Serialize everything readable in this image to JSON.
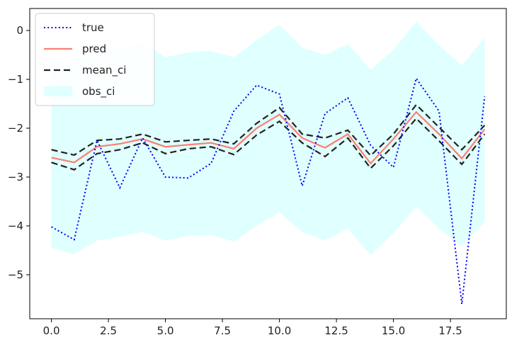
{
  "chart_data": {
    "type": "line",
    "title": "",
    "xlabel": "",
    "ylabel": "",
    "xlim": [
      -0.95,
      19.95
    ],
    "ylim": [
      -5.9,
      0.45
    ],
    "xticks": [
      0,
      2.5,
      5,
      7.5,
      10,
      12.5,
      15,
      17.5
    ],
    "xtick_labels": [
      "0.0",
      "2.5",
      "5.0",
      "7.5",
      "10.0",
      "12.5",
      "15.0",
      "17.5"
    ],
    "yticks": [
      0,
      -1,
      -2,
      -3,
      -4,
      -5
    ],
    "ytick_labels": [
      "0",
      "−1",
      "−2",
      "−3",
      "−4",
      "−5"
    ],
    "grid": false,
    "legend_position": "top-left",
    "x": [
      0,
      1,
      2,
      3,
      4,
      5,
      6,
      7,
      8,
      9,
      10,
      11,
      12,
      13,
      14,
      15,
      16,
      17,
      18,
      19
    ],
    "series": [
      {
        "name": "true",
        "style": "dotted",
        "color": "#0000ff",
        "values": [
          -4.02,
          -4.28,
          -2.25,
          -3.22,
          -2.2,
          -3.0,
          -3.02,
          -2.72,
          -1.65,
          -1.12,
          -1.3,
          -3.18,
          -1.7,
          -1.38,
          -2.35,
          -2.8,
          -0.98,
          -1.65,
          -5.6,
          -1.35
        ]
      },
      {
        "name": "pred",
        "style": "solid",
        "color": "#fa8072",
        "values": [
          -2.6,
          -2.7,
          -2.38,
          -2.32,
          -2.22,
          -2.38,
          -2.34,
          -2.3,
          -2.42,
          -2.0,
          -1.72,
          -2.2,
          -2.4,
          -2.12,
          -2.72,
          -2.22,
          -1.67,
          -2.12,
          -2.62,
          -2.02
        ]
      },
      {
        "name": "mean_ci",
        "style": "dashed",
        "color": "#222222",
        "upper": [
          -2.44,
          -2.55,
          -2.25,
          -2.22,
          -2.12,
          -2.28,
          -2.25,
          -2.22,
          -2.32,
          -1.9,
          -1.58,
          -2.12,
          -2.2,
          -2.04,
          -2.56,
          -2.12,
          -1.52,
          -1.98,
          -2.44,
          -1.94
        ],
        "lower": [
          -2.7,
          -2.85,
          -2.52,
          -2.44,
          -2.3,
          -2.52,
          -2.42,
          -2.38,
          -2.54,
          -2.14,
          -1.86,
          -2.3,
          -2.58,
          -2.2,
          -2.82,
          -2.36,
          -1.8,
          -2.26,
          -2.74,
          -2.12
        ]
      },
      {
        "name": "obs_ci",
        "style": "band",
        "color": "#e0ffff",
        "upper": [
          -0.55,
          -0.75,
          -0.35,
          -0.38,
          -0.25,
          -0.55,
          -0.45,
          -0.42,
          -0.55,
          -0.2,
          0.12,
          -0.35,
          -0.5,
          -0.28,
          -0.8,
          -0.4,
          0.18,
          -0.3,
          -0.72,
          -0.15
        ],
        "lower": [
          -4.45,
          -4.58,
          -4.3,
          -4.22,
          -4.12,
          -4.3,
          -4.2,
          -4.18,
          -4.32,
          -4.0,
          -3.72,
          -4.12,
          -4.3,
          -4.05,
          -4.6,
          -4.15,
          -3.6,
          -4.05,
          -4.42,
          -3.92
        ]
      }
    ]
  }
}
